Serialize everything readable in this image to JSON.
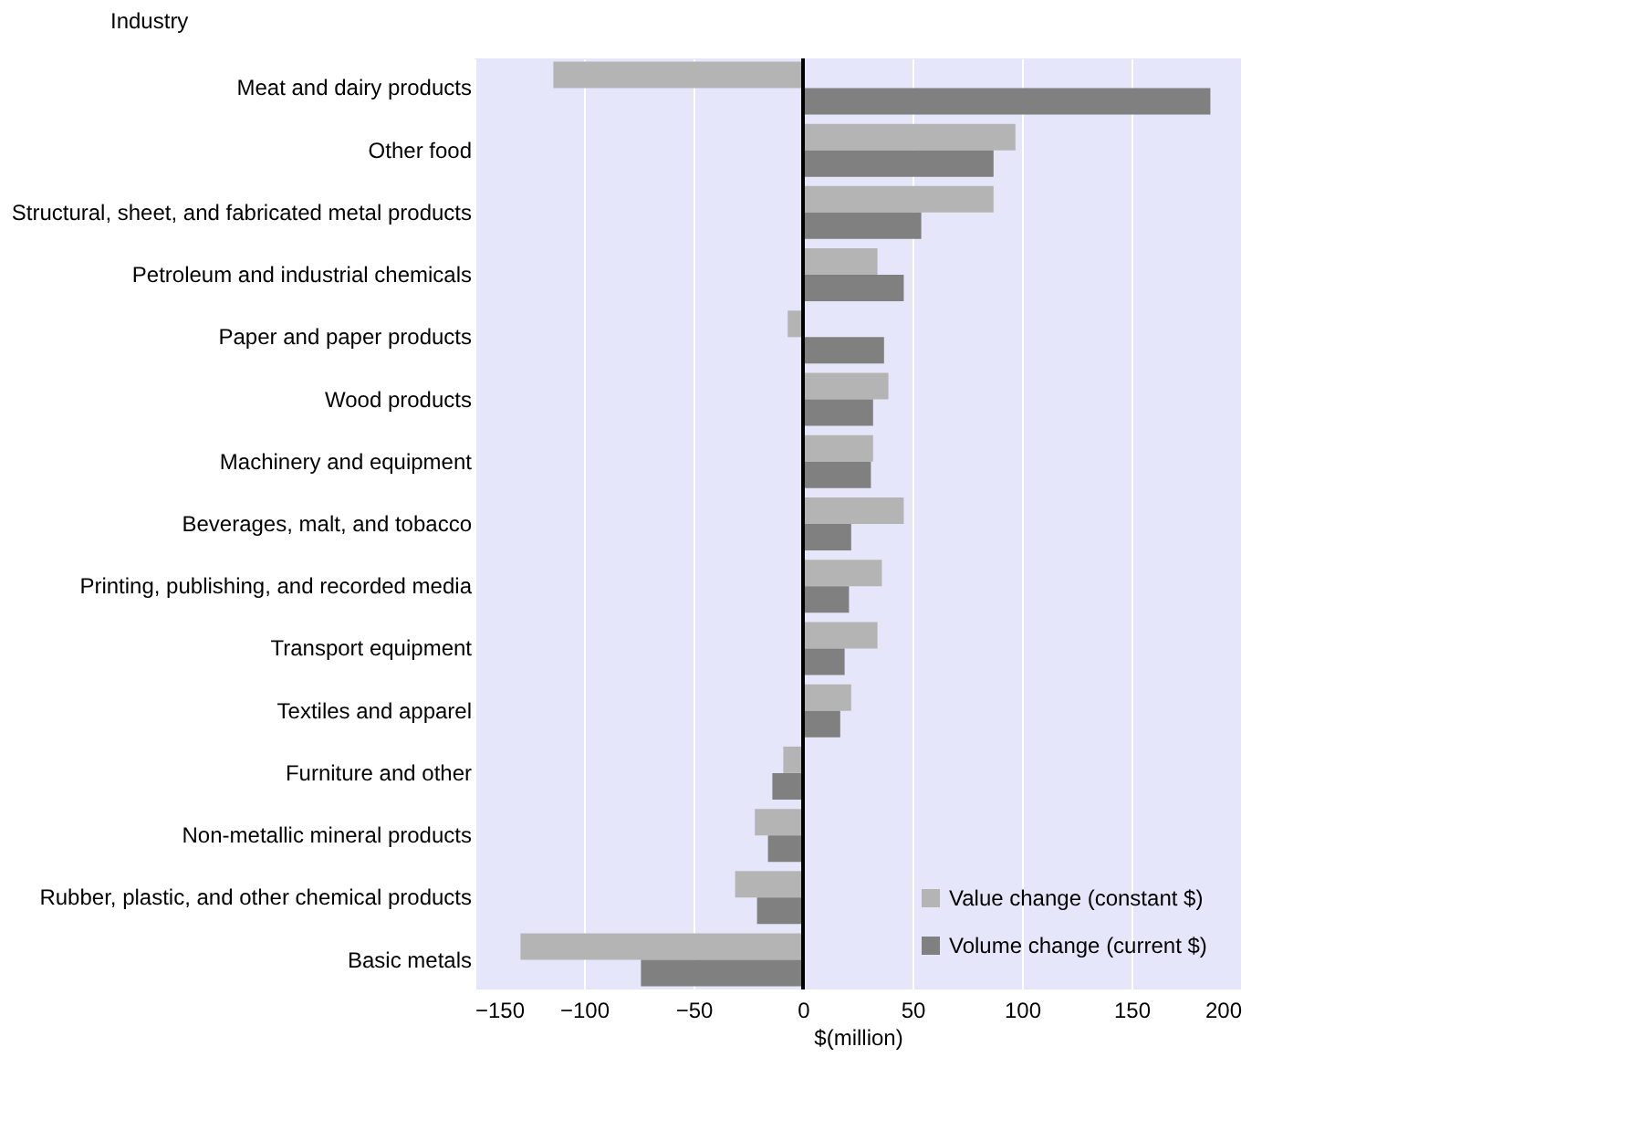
{
  "chart_data": {
    "type": "bar",
    "orientation": "horizontal",
    "ylabel": "Industry",
    "xlabel": "$(million)",
    "categories": [
      "Meat and dairy products",
      "Other food",
      "Structural, sheet, and fabricated metal products",
      "Petroleum and industrial chemicals",
      "Paper and paper products",
      "Wood products",
      "Machinery and equipment",
      "Beverages, malt, and tobacco",
      "Printing, publishing, and recorded media",
      "Transport equipment",
      "Textiles and apparel",
      "Furniture and other",
      "Non-metallic mineral products",
      "Rubber, plastic, and other chemical products",
      "Basic metals"
    ],
    "series": [
      {
        "name": "Value change (constant $)",
        "color": "#b4b4b4",
        "values": [
          -114,
          97,
          87,
          34,
          -7,
          39,
          32,
          46,
          36,
          34,
          22,
          -9,
          -22,
          -31,
          -129
        ]
      },
      {
        "name": "Volume change (current $)",
        "color": "#808080",
        "values": [
          186,
          87,
          54,
          46,
          37,
          32,
          31,
          22,
          21,
          19,
          17,
          -14,
          -16,
          -21,
          -74
        ]
      }
    ],
    "xlim": [
      -150,
      200
    ],
    "xticks": [
      -150,
      -100,
      -50,
      0,
      50,
      100,
      150,
      200
    ],
    "grid": "x",
    "legend": "bottom right"
  }
}
